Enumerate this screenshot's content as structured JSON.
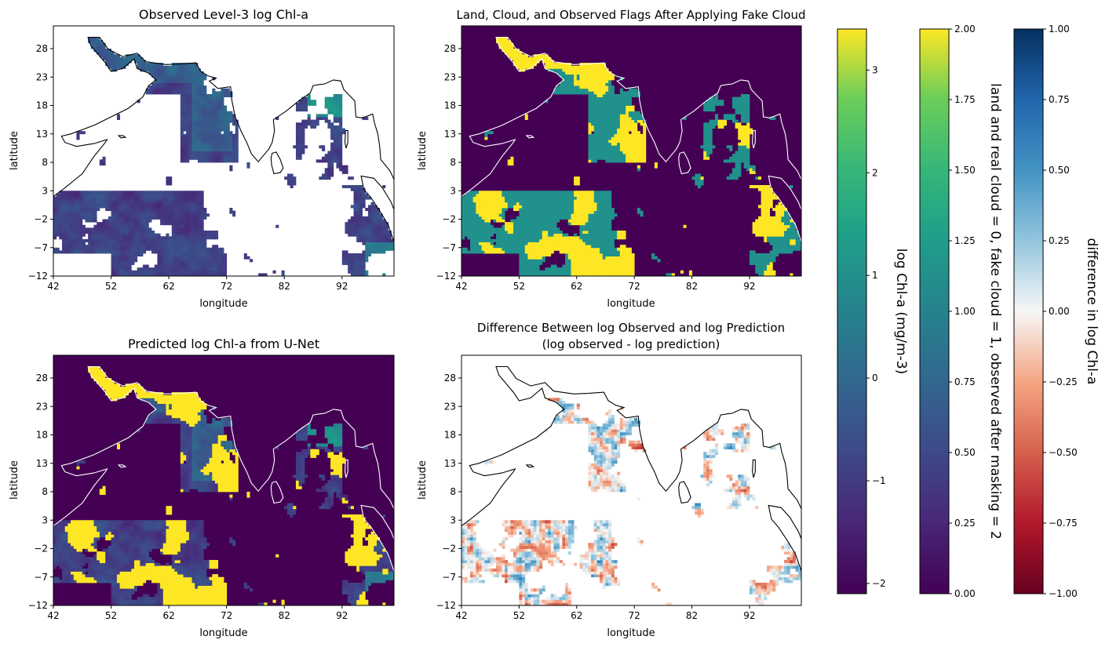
{
  "chart_data": [
    {
      "type": "heatmap",
      "title": "Observed Level-3 log Chl-a",
      "xlabel": "longitude",
      "ylabel": "latitude",
      "xlim": [
        42,
        101
      ],
      "ylim": [
        -12,
        32
      ],
      "x_ticks": [
        42,
        52,
        62,
        72,
        82,
        92
      ],
      "y_ticks": [
        -12,
        -7,
        -2,
        3,
        8,
        13,
        18,
        23,
        28
      ],
      "colormap": "viridis",
      "value_range": [
        -2.1,
        3.4
      ],
      "missing": "white",
      "coastline_color": "#000000"
    },
    {
      "type": "heatmap",
      "title": "Land, Cloud, and Observed Flags After Applying Fake Cloud",
      "xlabel": "longitude",
      "ylabel": "latitude",
      "xlim": [
        42,
        101
      ],
      "ylim": [
        -12,
        32
      ],
      "x_ticks": [
        42,
        52,
        62,
        72,
        82,
        92
      ],
      "y_ticks": [
        -12,
        -7,
        -2,
        3,
        8,
        13,
        18,
        23,
        28
      ],
      "colormap": "viridis",
      "value_range": [
        0,
        2
      ],
      "categories": [
        0,
        1,
        2
      ],
      "coastline_color": "#ffffff"
    },
    {
      "type": "heatmap",
      "title": "Predicted log Chl-a from U-Net",
      "xlabel": "longitude",
      "ylabel": "latitude",
      "xlim": [
        42,
        101
      ],
      "ylim": [
        -12,
        32
      ],
      "x_ticks": [
        42,
        52,
        62,
        72,
        82,
        92
      ],
      "y_ticks": [
        -12,
        -7,
        -2,
        3,
        8,
        13,
        18,
        23,
        28
      ],
      "colormap": "viridis",
      "value_range": [
        -2.1,
        3.4
      ],
      "coastline_color": "#ffffff"
    },
    {
      "type": "heatmap",
      "title": "Difference Between log Observed and log Prediction",
      "subtitle": "(log observed - log prediction)",
      "xlabel": "longitude",
      "ylabel": "latitude",
      "xlim": [
        42,
        101
      ],
      "ylim": [
        -12,
        32
      ],
      "x_ticks": [
        42,
        52,
        62,
        72,
        82,
        92
      ],
      "y_ticks": [
        -12,
        -7,
        -2,
        3,
        8,
        13,
        18,
        23,
        28
      ],
      "colormap": "RdBu",
      "value_range": [
        -1,
        1
      ],
      "missing": "white",
      "coastline_color": "#000000"
    }
  ],
  "colorbars": [
    {
      "label": "log Chl-a (mg/m-3)",
      "colormap": "viridis",
      "range": [
        -2.1,
        3.4
      ],
      "ticks": [
        -2,
        -1,
        0,
        1,
        2,
        3
      ],
      "tick_labels": [
        "−2",
        "−1",
        "0",
        "1",
        "2",
        "3"
      ]
    },
    {
      "label": "land and real cloud = 0, fake cloud = 1, observed after masking = 2",
      "colormap": "viridis",
      "range": [
        0,
        2
      ],
      "ticks": [
        0,
        0.25,
        0.5,
        0.75,
        1,
        1.25,
        1.5,
        1.75,
        2
      ],
      "tick_labels": [
        "0.00",
        "0.25",
        "0.50",
        "0.75",
        "1.00",
        "1.25",
        "1.50",
        "1.75",
        "2.00"
      ]
    },
    {
      "label": "difference in log Chl-a",
      "colormap": "RdBu",
      "range": [
        -1,
        1
      ],
      "ticks": [
        -1,
        -0.75,
        -0.5,
        -0.25,
        0,
        0.25,
        0.5,
        0.75,
        1
      ],
      "tick_labels": [
        "−1.00",
        "−0.75",
        "−0.50",
        "−0.25",
        "0.00",
        "0.25",
        "0.50",
        "0.75",
        "1.00"
      ]
    }
  ],
  "colors": {
    "viridis_low": "#440154",
    "viridis_mid": "#21918c",
    "viridis_high": "#fde725",
    "rdbu_low": "#67001f",
    "rdbu_mid": "#f7f7f7",
    "rdbu_high": "#053061"
  }
}
